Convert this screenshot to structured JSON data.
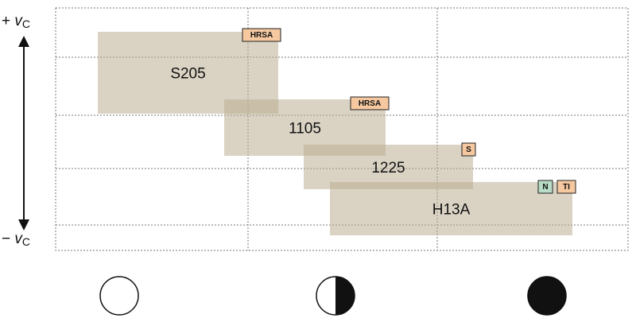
{
  "axis": {
    "top": {
      "sign": "+",
      "symbol": "v",
      "subscript": "C"
    },
    "bottom": {
      "sign": "−",
      "symbol": "v",
      "subscript": "C"
    }
  },
  "grades": [
    {
      "label": "S205",
      "tags": [
        "HRSA"
      ]
    },
    {
      "label": "1105",
      "tags": [
        "HRSA"
      ]
    },
    {
      "label": "1225",
      "tags": [
        "S"
      ]
    },
    {
      "label": "H13A",
      "tags": [
        "N",
        "TI"
      ]
    }
  ]
}
